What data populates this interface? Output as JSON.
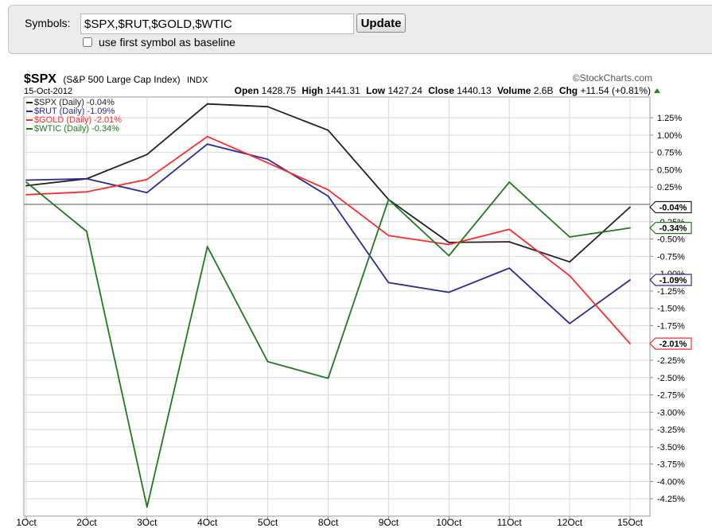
{
  "form": {
    "symbols_label": "Symbols:",
    "symbols_value": "$SPX,$RUT,$GOLD,$WTIC",
    "update_label": "Update",
    "baseline_label": "use first symbol as baseline"
  },
  "header": {
    "symbol": "$SPX",
    "name": "(S&P 500 Large Cap Index)",
    "exchange": "INDX",
    "date": "15-Oct-2012",
    "brand": "©StockCharts.com",
    "open_label": "Open",
    "open_value": "1428.75",
    "high_label": "High",
    "high_value": "1441.31",
    "low_label": "Low",
    "low_value": "1427.24",
    "close_label": "Close",
    "close_value": "1440.13",
    "volume_label": "Volume",
    "volume_value": "2.6B",
    "chg_label": "Chg",
    "chg_value": "+11.54 (+0.81%)"
  },
  "colors": {
    "spx": "#222222",
    "rut": "#2a2a96",
    "gold": "#ff2a2a",
    "wtic": "#1e7a1e",
    "grid": "#d8d8d8",
    "zero": "#555555"
  },
  "chart_data": {
    "type": "line",
    "title": "$SPX (S&P 500 Large Cap Index) INDX",
    "categories": [
      "1Oct",
      "2Oct",
      "3Oct",
      "4Oct",
      "5Oct",
      "8Oct",
      "9Oct",
      "10Oct",
      "11Oct",
      "12Oct",
      "15Oct"
    ],
    "ylim": [
      -4.5,
      1.55
    ],
    "ylabel_format": "percent",
    "yticks": [
      1.25,
      1.0,
      0.75,
      0.5,
      0.25,
      -0.25,
      -0.5,
      -0.75,
      -1.0,
      -1.25,
      -1.5,
      -1.75,
      -2.0,
      -2.25,
      -2.5,
      -2.75,
      -3.0,
      -3.25,
      -3.5,
      -3.75,
      -4.0,
      -4.25
    ],
    "ytick_labels": [
      "1.25%",
      "1.00%",
      "0.75%",
      "0.50%",
      "0.25%",
      "-0.25%",
      "-0.50%",
      "-0.75%",
      "-1.00%",
      "-1.25%",
      "-1.50%",
      "-1.75%",
      "-2.00%",
      "-2.25%",
      "-2.50%",
      "-2.75%",
      "-3.00%",
      "-3.25%",
      "-3.50%",
      "-3.75%",
      "-4.00%",
      "-4.25%"
    ],
    "series": [
      {
        "key": "spx",
        "name": "$SPX (Daily) -0.04%",
        "last_label": "-0.04%",
        "values": [
          0.27,
          0.37,
          0.72,
          1.45,
          1.41,
          1.07,
          0.07,
          -0.55,
          -0.54,
          -0.83,
          -0.04
        ]
      },
      {
        "key": "rut",
        "name": "$RUT (Daily) -1.09%",
        "last_label": "-1.09%",
        "values": [
          0.35,
          0.37,
          0.17,
          0.87,
          0.65,
          0.12,
          -1.13,
          -1.27,
          -0.92,
          -1.72,
          -1.09
        ]
      },
      {
        "key": "gold",
        "name": "$GOLD (Daily) -2.01%",
        "last_label": "-2.01%",
        "values": [
          0.14,
          0.18,
          0.36,
          0.98,
          0.6,
          0.21,
          -0.45,
          -0.58,
          -0.36,
          -1.03,
          -2.01
        ]
      },
      {
        "key": "wtic",
        "name": "$WTIC (Daily) -0.34%",
        "last_label": "-0.34%",
        "values": [
          0.32,
          -0.39,
          -4.37,
          -0.61,
          -2.27,
          -2.51,
          0.07,
          -0.74,
          0.32,
          -0.47,
          -0.34
        ]
      }
    ]
  }
}
